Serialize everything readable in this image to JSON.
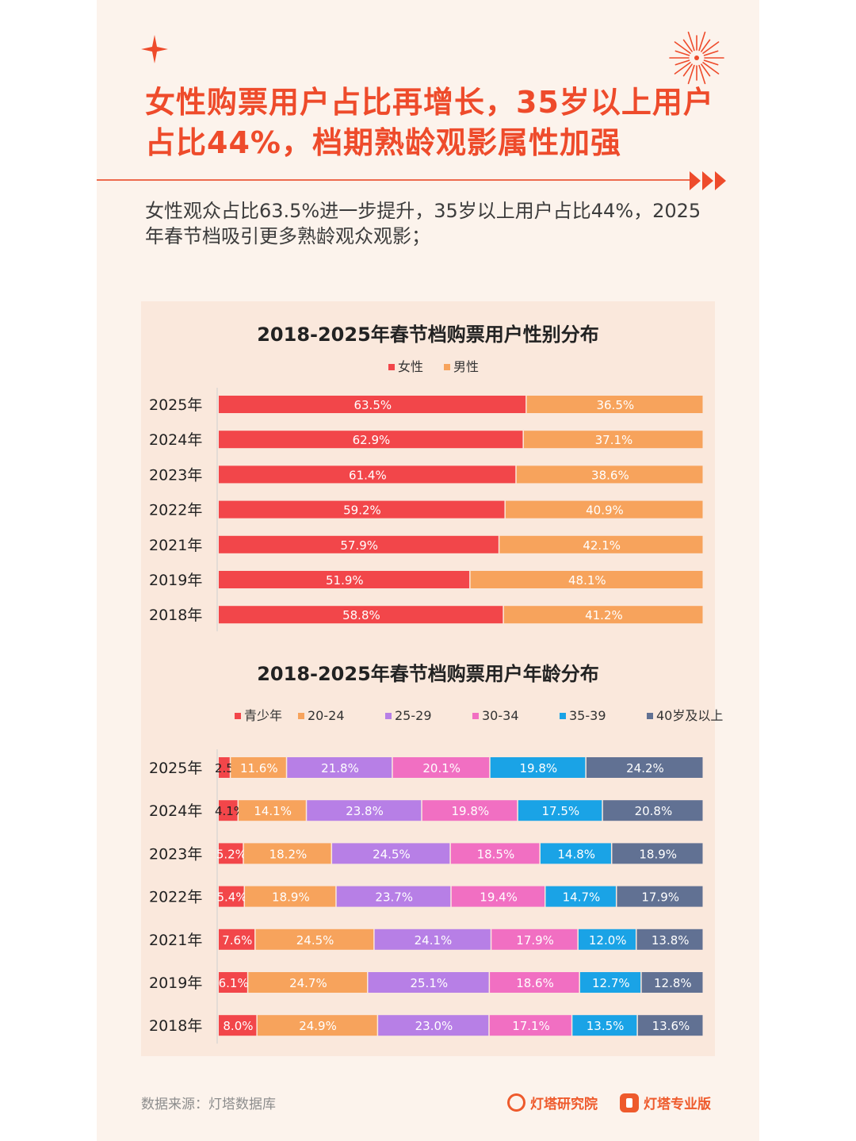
{
  "header": {
    "title": "女性购票用户占比再增长，35岁以上用户占比44%，档期熟龄观影属性加强",
    "subtitle": "女性观众占比63.5%进一步提升，35岁以上用户占比44%，2025年春节档吸引更多熟龄观众观影；"
  },
  "footer": {
    "source": "数据来源：灯塔数据库",
    "brand1": "灯塔研究院",
    "brand2": "灯塔专业版"
  },
  "chart_data": [
    {
      "type": "bar",
      "stacked": true,
      "orientation": "horizontal",
      "title": "2018-2025年春节档购票用户性别分布",
      "categories": [
        "2025年",
        "2024年",
        "2023年",
        "2022年",
        "2021年",
        "2019年",
        "2018年"
      ],
      "series": [
        {
          "name": "女性",
          "color": "#f2464a",
          "values": [
            63.5,
            62.9,
            61.4,
            59.2,
            57.9,
            51.9,
            58.8
          ],
          "labels": [
            "63.5%",
            "62.9%",
            "61.4%",
            "59.2%",
            "57.9%",
            "51.9%",
            "58.8%"
          ]
        },
        {
          "name": "男性",
          "color": "#f7a35c",
          "values": [
            36.5,
            37.1,
            38.6,
            40.9,
            42.1,
            48.1,
            41.2
          ],
          "labels": [
            "36.5%",
            "37.1%",
            "38.6%",
            "40.9%",
            "42.1%",
            "48.1%",
            "41.2%"
          ]
        }
      ],
      "legend": "top-center"
    },
    {
      "type": "bar",
      "stacked": true,
      "orientation": "horizontal",
      "title": "2018-2025年春节档购票用户年龄分布",
      "categories": [
        "2025年",
        "2024年",
        "2023年",
        "2022年",
        "2021年",
        "2019年",
        "2018年"
      ],
      "series": [
        {
          "name": "青少年",
          "color": "#f2464a",
          "values": [
            2.5,
            4.1,
            5.2,
            5.4,
            7.6,
            6.1,
            8.0
          ],
          "labels": [
            "2.5%",
            "4.1%",
            "5.2%",
            "5.4%",
            "7.6%",
            "6.1%",
            "8.0%"
          ]
        },
        {
          "name": "20-24",
          "color": "#f7a35c",
          "values": [
            11.6,
            14.1,
            18.2,
            18.9,
            24.5,
            24.7,
            24.9
          ],
          "labels": [
            "11.6%",
            "14.1%",
            "18.2%",
            "18.9%",
            "24.5%",
            "24.7%",
            "24.9%"
          ]
        },
        {
          "name": "25-29",
          "color": "#b77fe6",
          "values": [
            21.8,
            23.8,
            24.5,
            23.7,
            24.1,
            25.1,
            23.0
          ],
          "labels": [
            "21.8%",
            "23.8%",
            "24.5%",
            "23.7%",
            "24.1%",
            "25.1%",
            "23.0%"
          ]
        },
        {
          "name": "30-34",
          "color": "#f16fc2",
          "values": [
            20.1,
            19.8,
            18.5,
            19.4,
            17.9,
            18.6,
            17.1
          ],
          "labels": [
            "20.1%",
            "19.8%",
            "18.5%",
            "19.4%",
            "17.9%",
            "18.6%",
            "17.1%"
          ]
        },
        {
          "name": "35-39",
          "color": "#1aa3e6",
          "values": [
            19.8,
            17.5,
            14.8,
            14.7,
            12.0,
            12.7,
            13.5
          ],
          "labels": [
            "19.8%",
            "17.5%",
            "14.8%",
            "14.7%",
            "12.0%",
            "12.7%",
            "13.5%"
          ]
        },
        {
          "name": "40岁及以上",
          "color": "#617193",
          "values": [
            24.2,
            20.8,
            18.9,
            17.9,
            13.8,
            12.8,
            13.6
          ],
          "labels": [
            "24.2%",
            "20.8%",
            "18.9%",
            "17.9%",
            "13.8%",
            "12.8%",
            "13.6%"
          ]
        }
      ],
      "legend": "top-center"
    }
  ]
}
